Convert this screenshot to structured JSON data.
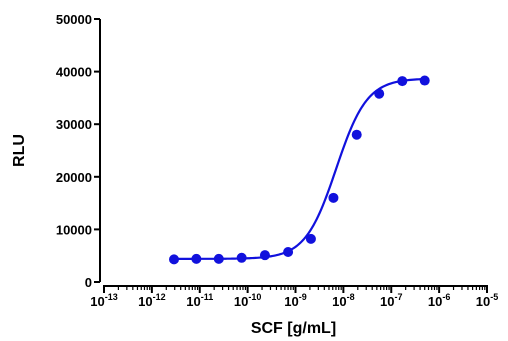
{
  "chart_data": {
    "type": "scatter",
    "title": "",
    "xlabel": "SCF [g/mL]",
    "ylabel": "RLU",
    "x_scale": "log",
    "xlim": [
      1e-13,
      1e-05
    ],
    "ylim": [
      0,
      50000
    ],
    "y_ticks": [
      0,
      10000,
      20000,
      30000,
      40000,
      50000
    ],
    "y_tick_labels": [
      "0",
      "10000",
      "20000",
      "30000",
      "40000",
      "50000"
    ],
    "x_tick_labels": [
      {
        "base": "10",
        "exp": "-13"
      },
      {
        "base": "10",
        "exp": "-12"
      },
      {
        "base": "10",
        "exp": "-11"
      },
      {
        "base": "10",
        "exp": "-10"
      },
      {
        "base": "10",
        "exp": "-9"
      },
      {
        "base": "10",
        "exp": "-8"
      },
      {
        "base": "10",
        "exp": "-7"
      },
      {
        "base": "10",
        "exp": "-6"
      },
      {
        "base": "10",
        "exp": "-5"
      }
    ],
    "series": [
      {
        "color": "#1111dd",
        "points": [
          {
            "x": 2.9e-12,
            "y": 4300
          },
          {
            "x": 8.5e-12,
            "y": 4400
          },
          {
            "x": 2.5e-11,
            "y": 4400
          },
          {
            "x": 7.5e-11,
            "y": 4600
          },
          {
            "x": 2.3e-10,
            "y": 5100
          },
          {
            "x": 7e-10,
            "y": 5700
          },
          {
            "x": 2.1e-09,
            "y": 8200
          },
          {
            "x": 6.2e-09,
            "y": 16000
          },
          {
            "x": 1.9e-08,
            "y": 28000
          },
          {
            "x": 5.6e-08,
            "y": 35800
          },
          {
            "x": 1.7e-07,
            "y": 38200
          },
          {
            "x": 5e-07,
            "y": 38300
          }
        ],
        "fit": {
          "bottom": 4400,
          "top": 38700,
          "log_ec50": -8.15,
          "hill_slope": 1.35
        }
      }
    ],
    "grid": false,
    "legend": "none"
  }
}
